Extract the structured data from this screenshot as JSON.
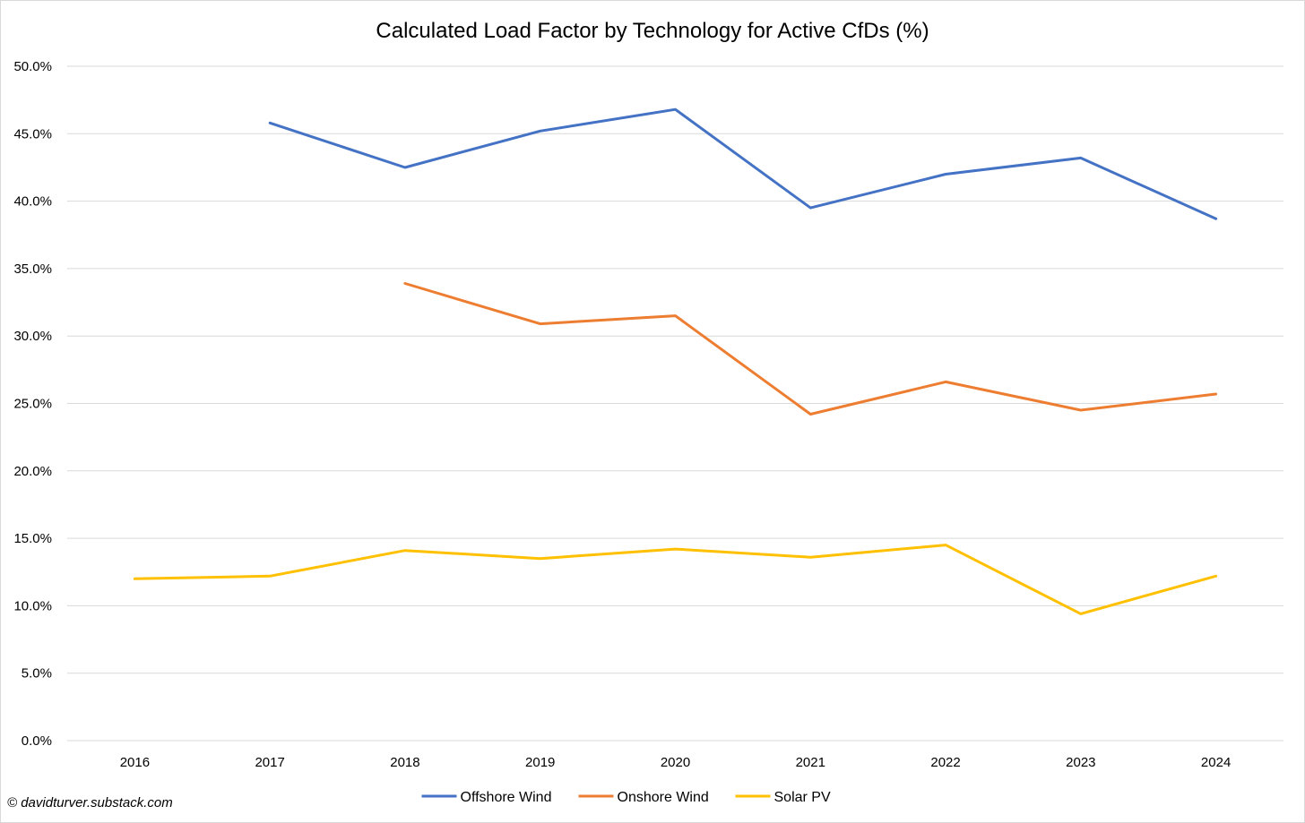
{
  "chart_data": {
    "type": "line",
    "title": "Calculated Load Factor by Technology for Active CfDs (%)",
    "xlabel": "",
    "ylabel": "",
    "categories": [
      "2016",
      "2017",
      "2018",
      "2019",
      "2020",
      "2021",
      "2022",
      "2023",
      "2024"
    ],
    "ylim": [
      0,
      50
    ],
    "yticks": [
      0,
      5,
      10,
      15,
      20,
      25,
      30,
      35,
      40,
      45,
      50
    ],
    "ytick_format": "percent_1dp",
    "grid": "horizontal",
    "legend_position": "bottom",
    "series": [
      {
        "name": "Offshore Wind",
        "color": "#4472C4",
        "values": [
          null,
          45.8,
          42.5,
          45.2,
          46.8,
          39.5,
          42.0,
          43.2,
          38.7
        ]
      },
      {
        "name": "Onshore Wind",
        "color": "#ED7D31",
        "values": [
          null,
          null,
          33.9,
          30.9,
          31.5,
          24.2,
          26.6,
          24.5,
          25.7
        ]
      },
      {
        "name": "Solar PV",
        "color": "#FFC000",
        "values": [
          12.0,
          12.2,
          14.1,
          13.5,
          14.2,
          13.6,
          14.5,
          9.4,
          12.2
        ]
      }
    ]
  },
  "credit": "© davidturver.substack.com"
}
